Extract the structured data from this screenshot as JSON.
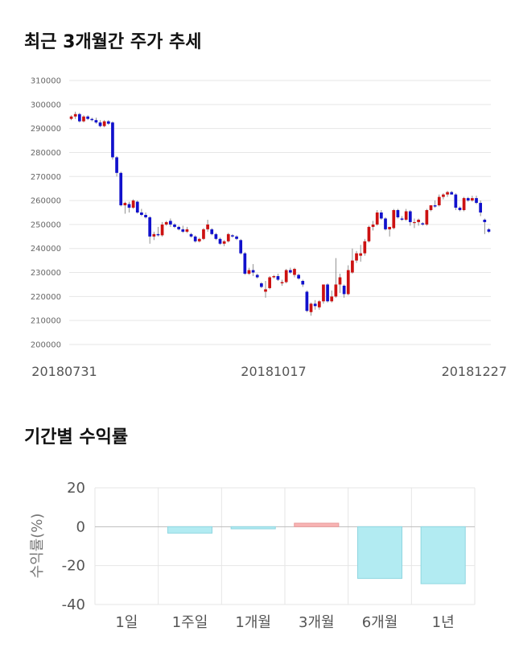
{
  "section1": {
    "title": "최근 3개월간 주가 추세"
  },
  "section2": {
    "title": "기간별 수익률"
  },
  "colors": {
    "up": "#cc1111",
    "down": "#1111cc",
    "neg_bar": "#b2ebf2",
    "neg_bar_edge": "#8fd6e0",
    "pos_bar": "#f8b4b4",
    "pos_bar_edge": "#e89a9a",
    "grid": "#e6e6e6"
  },
  "chart_data": [
    {
      "type": "candlestick",
      "title": "최근 3개월간 주가 추세",
      "ylim": [
        200000,
        310000
      ],
      "yticks": [
        "310000",
        "300000",
        "290000",
        "280000",
        "270000",
        "260000",
        "250000",
        "240000",
        "230000",
        "220000",
        "210000",
        "200000"
      ],
      "xticks": [
        "20180731",
        "20181017",
        "20181227"
      ],
      "grid": true,
      "candles": [
        [
          294000,
          295500,
          293500,
          295000
        ],
        [
          295000,
          297000,
          294000,
          296000
        ],
        [
          296000,
          296500,
          292500,
          293000
        ],
        [
          293000,
          295500,
          292500,
          295000
        ],
        [
          295000,
          295500,
          293500,
          294000
        ],
        [
          294000,
          294500,
          293000,
          293500
        ],
        [
          293500,
          294500,
          292000,
          292500
        ],
        [
          292500,
          293500,
          290500,
          291000
        ],
        [
          291000,
          293500,
          290500,
          293000
        ],
        [
          293000,
          293500,
          291500,
          292000
        ],
        [
          292500,
          293000,
          277000,
          278000
        ],
        [
          278000,
          278500,
          270000,
          271500
        ],
        [
          271500,
          272000,
          257500,
          258000
        ],
        [
          258000,
          259500,
          254500,
          259000
        ],
        [
          258500,
          259500,
          255000,
          257000
        ],
        [
          257000,
          260500,
          256500,
          260000
        ],
        [
          259500,
          260000,
          254500,
          255000
        ],
        [
          255000,
          256500,
          253500,
          254000
        ],
        [
          254000,
          255000,
          252500,
          253000
        ],
        [
          253000,
          253500,
          242000,
          245000
        ],
        [
          245000,
          247000,
          243500,
          246000
        ],
        [
          246000,
          249000,
          245000,
          245500
        ],
        [
          245500,
          251000,
          245000,
          250000
        ],
        [
          250000,
          251500,
          249500,
          251000
        ],
        [
          251500,
          252500,
          249000,
          250000
        ],
        [
          250000,
          250500,
          248500,
          249000
        ],
        [
          249000,
          249500,
          247500,
          248000
        ],
        [
          248000,
          249500,
          246500,
          247000
        ],
        [
          247000,
          249000,
          246500,
          248000
        ],
        [
          246000,
          246500,
          244500,
          245000
        ],
        [
          245000,
          245500,
          242500,
          243000
        ],
        [
          243000,
          244500,
          242500,
          244000
        ],
        [
          244000,
          248500,
          243500,
          248000
        ],
        [
          248000,
          252000,
          247000,
          250000
        ],
        [
          248000,
          248500,
          245500,
          246000
        ],
        [
          246000,
          246500,
          243500,
          244000
        ],
        [
          244000,
          244500,
          241500,
          242000
        ],
        [
          242000,
          243500,
          241000,
          243000
        ],
        [
          243000,
          246500,
          242500,
          246000
        ],
        [
          245500,
          246000,
          244500,
          245000
        ],
        [
          245000,
          245500,
          243500,
          244000
        ],
        [
          243500,
          244000,
          237500,
          238000
        ],
        [
          238000,
          238500,
          229000,
          229500
        ],
        [
          229500,
          232000,
          229000,
          231000
        ],
        [
          231000,
          233500,
          228500,
          230000
        ],
        [
          229000,
          229500,
          227500,
          228000
        ],
        [
          225500,
          226000,
          223500,
          224000
        ],
        [
          222000,
          226500,
          219500,
          223000
        ],
        [
          223500,
          228500,
          223000,
          228000
        ],
        [
          228000,
          229000,
          227500,
          228500
        ],
        [
          228500,
          229500,
          226500,
          227000
        ],
        [
          225500,
          227000,
          224500,
          226000
        ],
        [
          226000,
          231500,
          225500,
          231000
        ],
        [
          231000,
          232000,
          229500,
          230000
        ],
        [
          229000,
          232000,
          228000,
          231500
        ],
        [
          229000,
          229500,
          227000,
          227500
        ],
        [
          226500,
          227000,
          224000,
          225000
        ],
        [
          222000,
          222500,
          213500,
          214000
        ],
        [
          213500,
          217500,
          212000,
          217000
        ],
        [
          217000,
          218500,
          214500,
          216000
        ],
        [
          215500,
          218500,
          214500,
          218000
        ],
        [
          218000,
          225000,
          217000,
          225000
        ],
        [
          225000,
          225500,
          217500,
          218000
        ],
        [
          218000,
          222500,
          217500,
          220000
        ],
        [
          220000,
          236000,
          219500,
          225000
        ],
        [
          225000,
          229500,
          221500,
          228000
        ],
        [
          224500,
          225000,
          219500,
          221000
        ],
        [
          221000,
          233000,
          220500,
          231000
        ],
        [
          230000,
          240000,
          229500,
          235000
        ],
        [
          235000,
          239000,
          234000,
          238000
        ],
        [
          237000,
          241500,
          234500,
          238000
        ],
        [
          238000,
          244000,
          237000,
          243000
        ],
        [
          243000,
          249500,
          242500,
          249000
        ],
        [
          249000,
          251500,
          247500,
          250000
        ],
        [
          250000,
          256000,
          249500,
          255000
        ],
        [
          255000,
          256000,
          252000,
          252500
        ],
        [
          252500,
          253000,
          247500,
          248000
        ],
        [
          248000,
          249000,
          245000,
          249000
        ],
        [
          248500,
          256500,
          248000,
          256000
        ],
        [
          256000,
          256500,
          252500,
          253000
        ],
        [
          252500,
          253500,
          251500,
          252000
        ],
        [
          252000,
          256500,
          251500,
          255500
        ],
        [
          255500,
          256000,
          249500,
          251000
        ],
        [
          251000,
          252500,
          248500,
          251000
        ],
        [
          251000,
          252500,
          249500,
          252000
        ],
        [
          250500,
          251000,
          249500,
          250000
        ],
        [
          250000,
          256500,
          249500,
          256000
        ],
        [
          256000,
          258000,
          255500,
          258000
        ],
        [
          258000,
          260000,
          257000,
          257500
        ],
        [
          258000,
          262500,
          257500,
          261500
        ],
        [
          261500,
          263000,
          260500,
          262500
        ],
        [
          262500,
          264000,
          261500,
          263500
        ],
        [
          263500,
          264000,
          262500,
          262500
        ],
        [
          262500,
          263000,
          256000,
          257000
        ],
        [
          257000,
          257500,
          255500,
          256000
        ],
        [
          256000,
          261500,
          255500,
          261000
        ],
        [
          261000,
          261500,
          259500,
          260000
        ],
        [
          260000,
          262000,
          259500,
          261000
        ],
        [
          261000,
          262000,
          258500,
          259000
        ],
        [
          259000,
          260000,
          253500,
          255000
        ],
        [
          252000,
          252500,
          246000,
          251000
        ],
        [
          248000,
          248500,
          246500,
          247000
        ]
      ]
    },
    {
      "type": "bar",
      "title": "기간별 수익률",
      "categories": [
        "1일",
        "1주일",
        "1개월",
        "3개월",
        "6개월",
        "1년"
      ],
      "values": [
        0,
        -3.3,
        -1.1,
        1.8,
        -26.6,
        -29.3
      ],
      "ylabel": "수익률(%)",
      "ylim": [
        -40,
        20
      ],
      "yticks": [
        "20",
        "0",
        "-20",
        "-40"
      ],
      "grid": true
    }
  ]
}
